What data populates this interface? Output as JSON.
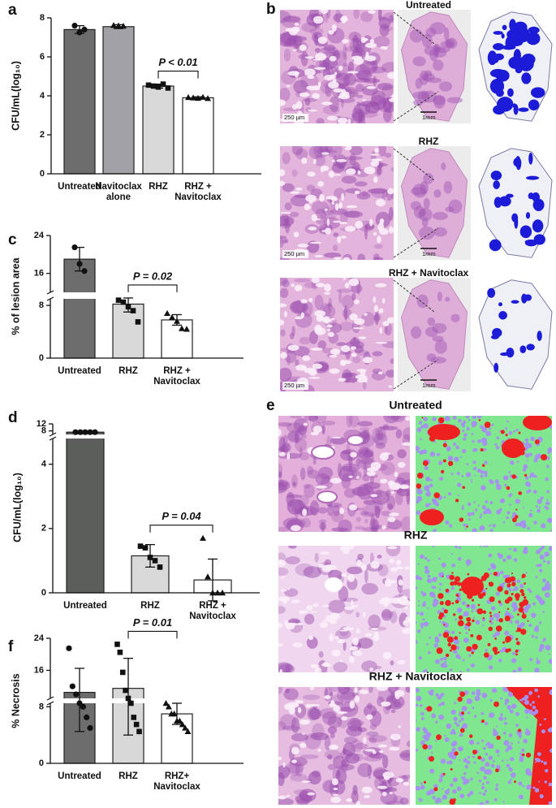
{
  "chart_data": [
    {
      "type": "bar",
      "panel_label": "a",
      "ylabel": "CFU/mL(log₁₀)",
      "categories": [
        "Untreated",
        "Navitoclax\nalone",
        "RHZ",
        "RHZ +\nNavitoclax"
      ],
      "values": [
        7.4,
        7.55,
        4.5,
        3.9
      ],
      "errors": [
        0.2,
        0.1,
        0.1,
        0.05
      ],
      "colors": [
        "#6d6d6d",
        "#a2a2a6",
        "#d9d9d9",
        "#ffffff"
      ],
      "markers": [
        "circle",
        "triangle",
        "square",
        "triangle"
      ],
      "points": [
        [
          7.6,
          7.25,
          7.4
        ],
        [
          7.62,
          7.6,
          7.58
        ],
        [
          4.55,
          4.5,
          4.45,
          4.6,
          4.4
        ],
        [
          3.92,
          3.9,
          3.88,
          3.93,
          3.87
        ]
      ],
      "ylim": [
        0,
        8
      ],
      "yticks": [
        0,
        2,
        4,
        6,
        8
      ],
      "annotation": "P < 0.01"
    },
    {
      "type": "bar",
      "panel_label": "c",
      "ylabel": "% of lesion area",
      "categories": [
        "Untreated",
        "RHZ",
        "RHZ +\nNavitoclax"
      ],
      "values": [
        19,
        8.2,
        5.8
      ],
      "errors": [
        2.5,
        1.2,
        0.8
      ],
      "colors": [
        "#6d6d6d",
        "#d9d9d9",
        "#ffffff"
      ],
      "markers": [
        "circle",
        "square",
        "triangle"
      ],
      "points": [
        [
          21.5,
          18,
          16.5
        ],
        [
          8.8,
          8.5,
          7.8,
          7.2,
          5.5
        ],
        [
          6.8,
          6.2,
          5.6,
          4.5,
          4.4
        ]
      ],
      "ylim": [
        0,
        24
      ],
      "ybreak": [
        9,
        12
      ],
      "yticks": [
        0,
        8,
        16,
        24
      ],
      "annotation": "P = 0.02"
    },
    {
      "type": "bar",
      "panel_label": "d",
      "ylabel": "CFU/mL(log₁₀)",
      "categories": [
        "Untreated",
        "RHZ",
        "RHZ +\nNavitoclax"
      ],
      "values": [
        7.3,
        1.15,
        0.4
      ],
      "errors": [
        0.05,
        0.35,
        0.65
      ],
      "colors": [
        "#5b5e5b",
        "#d9d9d9",
        "#ffffff"
      ],
      "markers": [
        "circle",
        "square",
        "triangle"
      ],
      "points": [
        [
          7.3,
          7.3,
          7.3,
          7.3,
          7.3
        ],
        [
          1.45,
          1.4,
          1.1,
          1.0,
          0.8
        ],
        [
          1.7,
          0.5,
          0,
          0,
          0
        ]
      ],
      "ylim": [
        0,
        12
      ],
      "ybreak": [
        4.8,
        6
      ],
      "yticks": [
        0,
        2,
        4,
        8,
        12
      ],
      "annotation": "P = 0.04"
    },
    {
      "type": "bar",
      "panel_label": "f",
      "ylabel": "% Necrosis",
      "categories": [
        "Untreated",
        "RHZ",
        "RHZ+\nNavitoclax"
      ],
      "values": [
        10.5,
        11.5,
        7
      ],
      "errors": [
        6,
        7.5,
        1.5
      ],
      "colors": [
        "#6d6d6d",
        "#d8d8d8",
        "#ffffff"
      ],
      "markers": [
        "circle",
        "square",
        "triangle"
      ],
      "points": [
        [
          21.5,
          12,
          10,
          8.5,
          8,
          6.5,
          5
        ],
        [
          22.5,
          20.5,
          15.5,
          11,
          9,
          8.5,
          6.5,
          5.5,
          4.5
        ],
        [
          8.5,
          8,
          7,
          7,
          6,
          6,
          5.5,
          5,
          4.5
        ]
      ],
      "ylim": [
        0,
        24
      ],
      "ybreak": [
        8.5,
        9
      ],
      "yticks": [
        0,
        8,
        16,
        24
      ],
      "annotation": "P = 0.01"
    }
  ],
  "figure": {
    "panel_b": {
      "label": "b",
      "rows": [
        {
          "title": "Untreated",
          "scale_left": "250 µm",
          "scale_mid": "1mm"
        },
        {
          "title": "RHZ",
          "scale_left": "250 µm",
          "scale_mid": "1mm"
        },
        {
          "title": "RHZ + Navitoclax",
          "scale_left": "250 µm",
          "scale_mid": "1mm"
        }
      ]
    },
    "panel_e": {
      "label": "e",
      "rows": [
        {
          "title": "Untreated"
        },
        {
          "title": "RHZ"
        },
        {
          "title": "RHZ + Navitoclax"
        }
      ]
    }
  }
}
